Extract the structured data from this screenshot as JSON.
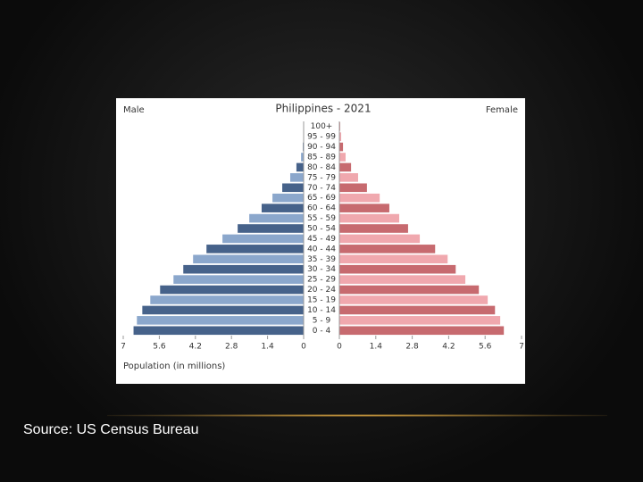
{
  "chart_data": {
    "type": "pyramid",
    "title": "Philippines - 2021",
    "categories": [
      "100+",
      "95 - 99",
      "90 - 94",
      "85 - 89",
      "80 - 84",
      "75 - 79",
      "70 - 74",
      "65 - 69",
      "60 - 64",
      "55 - 59",
      "50 - 54",
      "45 - 49",
      "40 - 44",
      "35 - 39",
      "30 - 34",
      "25 - 29",
      "20 - 24",
      "15 - 19",
      "10 - 14",
      "5 - 9",
      "0 - 4"
    ],
    "series": [
      {
        "name": "Male",
        "colors": [
          "#46628a",
          "#8ba7cc"
        ],
        "values": [
          0,
          0.01,
          0.03,
          0.1,
          0.28,
          0.52,
          0.83,
          1.21,
          1.63,
          2.11,
          2.56,
          3.15,
          3.77,
          4.29,
          4.67,
          5.05,
          5.57,
          5.95,
          6.26,
          6.47,
          6.6
        ]
      },
      {
        "name": "Female",
        "colors": [
          "#c76a6f",
          "#f0a8ae"
        ],
        "values": [
          0.03,
          0.07,
          0.14,
          0.24,
          0.45,
          0.72,
          1.06,
          1.55,
          1.92,
          2.3,
          2.64,
          3.09,
          3.68,
          4.16,
          4.47,
          4.84,
          5.36,
          5.7,
          5.98,
          6.18,
          6.32
        ]
      }
    ],
    "xlim": [
      0,
      7
    ],
    "xticks": [
      7,
      5.6,
      4.2,
      2.8,
      1.4,
      0
    ],
    "x_label": "Population (in millions)"
  },
  "source": "Source: US Census Bureau"
}
